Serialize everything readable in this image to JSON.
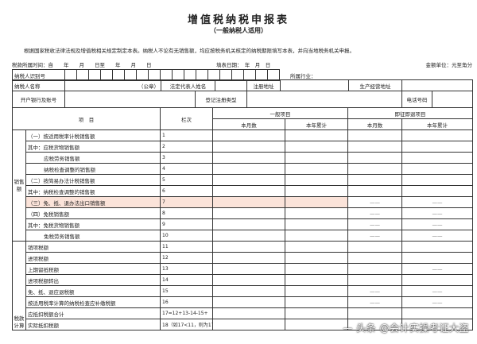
{
  "title": "增值税纳税申报表",
  "subtitle": "（一般纳税人适用）",
  "note": "根据国家税收法律法规及增值税相关规定制定本表。纳税人不论有无销售额，均应按税务机关核定的纳税期限填写本表，并向当地税务机关申报。",
  "period_label": "税款所属时间：自　　年　　月　　日至　　年　　月　　日",
  "fill_date_label": "填表日期：　年　月　日",
  "unit_label": "金额单位：元至角分",
  "info": {
    "taxpayer_id": "纳税人识别号",
    "industry": "所属行业：",
    "taxpayer_name": "纳税人名称",
    "seal": "（公章）",
    "legal_rep": "法定代表人姓名",
    "reg_address": "注册地址",
    "biz_address": "生产经营地址",
    "bank_account": "开户银行及账号",
    "reg_type": "登记注册类型",
    "phone": "电话号码"
  },
  "header": {
    "item": "项　目",
    "line": "栏次",
    "general": "一般项目",
    "immediate": "即征即退项目",
    "month": "本月数",
    "year": "本年累计"
  },
  "sections": {
    "sales": "销售额",
    "tax": "税款计算"
  },
  "rows": [
    {
      "label": "（一）按适用税率计税销售额",
      "line": "1",
      "indent": false,
      "dash": [
        false,
        false
      ]
    },
    {
      "label": "其中：应税货物销售额",
      "line": "2",
      "indent": false,
      "dash": [
        false,
        false
      ]
    },
    {
      "label": "应税劳务销售额",
      "line": "3",
      "indent": true,
      "dash": [
        false,
        false
      ]
    },
    {
      "label": "纳税检查调整的销售额",
      "line": "4",
      "indent": true,
      "dash": [
        false,
        false
      ]
    },
    {
      "label": "（二）按简易办法计税销售额",
      "line": "5",
      "indent": false,
      "dash": [
        false,
        false
      ]
    },
    {
      "label": "其中：纳税检查调整的销售额",
      "line": "6",
      "indent": false,
      "dash": [
        false,
        false
      ]
    },
    {
      "label": "（三）免、抵、退办法出口销售额",
      "line": "7",
      "indent": false,
      "dash": [
        true,
        true
      ],
      "highlight": true
    },
    {
      "label": "（四）免税销售额",
      "line": "8",
      "indent": false,
      "dash": [
        true,
        true
      ]
    },
    {
      "label": "其中：免税货物销售额",
      "line": "9",
      "indent": false,
      "dash": [
        true,
        true
      ]
    },
    {
      "label": "免税劳务销售额",
      "line": "10",
      "indent": true,
      "dash": [
        true,
        true
      ]
    },
    {
      "label": "销项税额",
      "line": "11",
      "indent": false,
      "dash": [
        false,
        false
      ]
    },
    {
      "label": "进项税额",
      "line": "12",
      "indent": false,
      "dash": [
        false,
        false
      ]
    },
    {
      "label": "上期留抵税额",
      "line": "13",
      "indent": false,
      "dash": [
        false,
        true
      ]
    },
    {
      "label": "进项税额转出",
      "line": "14",
      "indent": false,
      "dash": [
        false,
        false
      ]
    },
    {
      "label": "免、抵、退应退税额",
      "line": "15",
      "indent": false,
      "dash": [
        true,
        true
      ]
    },
    {
      "label": "按适用税率计算的纳税检查应补缴税额",
      "line": "16",
      "indent": false,
      "dash": [
        true,
        true
      ]
    },
    {
      "label": "应抵扣税额合计",
      "line": "17=12+13-14-15+",
      "indent": false,
      "dash": [
        false,
        false
      ]
    },
    {
      "label": "实际抵扣税额",
      "line": "18（如17<11，则为17，否则为11）",
      "indent": false,
      "dash": [
        false,
        false
      ]
    }
  ],
  "dash_text": "——",
  "watermark": "— 头条 @会计实操考证大盗",
  "colors": {
    "highlight": "#fbe3d9",
    "border": "#333333"
  }
}
